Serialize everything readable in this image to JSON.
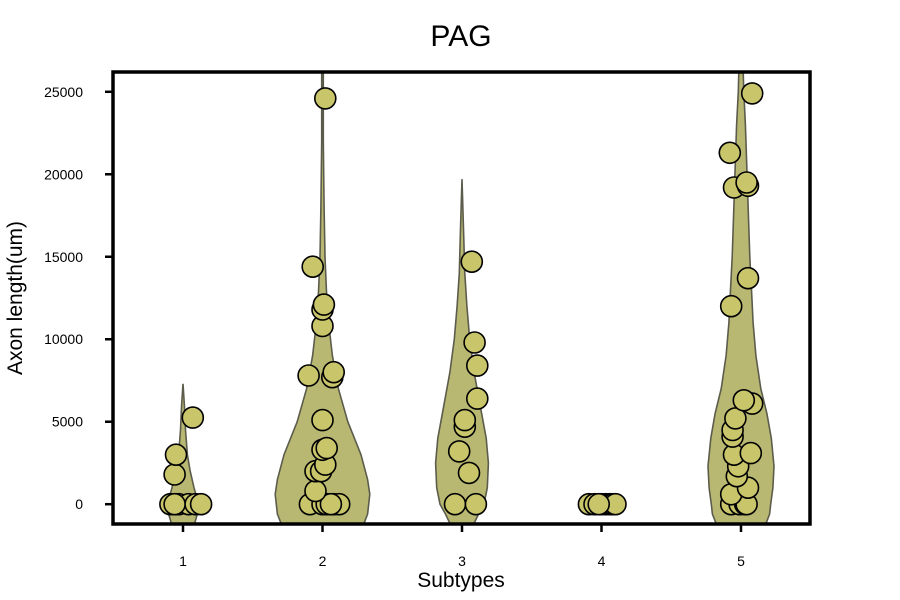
{
  "chart_data": {
    "type": "violin",
    "title": "PAG",
    "xlabel": "Subtypes",
    "ylabel": "Axon length(um)",
    "categories": [
      "1",
      "2",
      "3",
      "4",
      "5"
    ],
    "ylim": [
      -1200,
      26200
    ],
    "yticks": [
      0,
      5000,
      10000,
      15000,
      20000,
      25000
    ],
    "grid": false,
    "colors": {
      "violin_fill": "#b9b873",
      "violin_stroke": "#5c5c4c",
      "point_fill": "#c9c56b",
      "point_stroke": "#000000",
      "frame": "#000000"
    },
    "violins": [
      {
        "category": "1",
        "max": 7300,
        "profile": [
          [
            -1300,
            0.2
          ],
          [
            -600,
            0.26
          ],
          [
            0,
            0.26
          ],
          [
            400,
            0.25
          ],
          [
            1000,
            0.2
          ],
          [
            2000,
            0.13
          ],
          [
            3000,
            0.08
          ],
          [
            4500,
            0.045
          ],
          [
            6000,
            0.025
          ],
          [
            7300,
            0.0
          ]
        ]
      },
      {
        "category": "2",
        "max": 30000,
        "profile": [
          [
            -1200,
            0.75
          ],
          [
            -600,
            0.82
          ],
          [
            0,
            0.84
          ],
          [
            600,
            0.86
          ],
          [
            1500,
            0.82
          ],
          [
            3000,
            0.7
          ],
          [
            5000,
            0.46
          ],
          [
            7000,
            0.29
          ],
          [
            9000,
            0.18
          ],
          [
            11000,
            0.11
          ],
          [
            13000,
            0.07
          ],
          [
            15000,
            0.045
          ],
          [
            18000,
            0.03
          ],
          [
            22000,
            0.015
          ],
          [
            26200,
            0.015
          ]
        ]
      },
      {
        "category": "3",
        "max": 19700,
        "profile": [
          [
            -1300,
            0.2
          ],
          [
            -600,
            0.3
          ],
          [
            0,
            0.4
          ],
          [
            1000,
            0.46
          ],
          [
            2500,
            0.48
          ],
          [
            4000,
            0.44
          ],
          [
            6000,
            0.33
          ],
          [
            8000,
            0.22
          ],
          [
            10000,
            0.14
          ],
          [
            12000,
            0.09
          ],
          [
            14000,
            0.05
          ],
          [
            16500,
            0.03
          ],
          [
            19700,
            0.0
          ]
        ]
      },
      {
        "category": "5",
        "max": 30000,
        "profile": [
          [
            -1200,
            0.45
          ],
          [
            -600,
            0.52
          ],
          [
            0,
            0.54
          ],
          [
            1000,
            0.58
          ],
          [
            2300,
            0.6
          ],
          [
            4000,
            0.55
          ],
          [
            5500,
            0.47
          ],
          [
            7000,
            0.36
          ],
          [
            9000,
            0.27
          ],
          [
            11000,
            0.22
          ],
          [
            13000,
            0.19
          ],
          [
            15000,
            0.16
          ],
          [
            17000,
            0.14
          ],
          [
            19000,
            0.12
          ],
          [
            21000,
            0.1
          ],
          [
            23000,
            0.08
          ],
          [
            25000,
            0.05
          ],
          [
            26200,
            0.04
          ]
        ]
      }
    ],
    "points": [
      {
        "category": "1",
        "values": [
          0,
          0,
          0,
          0,
          0,
          0,
          0,
          1800,
          3000,
          5250
        ],
        "offsets": [
          -0.09,
          -0.05,
          -0.03,
          0.04,
          0.09,
          0.13,
          -0.06,
          -0.06,
          -0.05,
          0.07
        ]
      },
      {
        "category": "2",
        "values": [
          0,
          0,
          0,
          0,
          0,
          0,
          800,
          2000,
          2000,
          2400,
          3300,
          3400,
          5100,
          7800,
          7700,
          8000,
          10800,
          11800,
          12100,
          14400,
          24600
        ],
        "offsets": [
          -0.09,
          0.0,
          0.03,
          0.08,
          0.12,
          0.06,
          -0.05,
          -0.05,
          -0.01,
          0.02,
          0.0,
          0.03,
          0.0,
          -0.1,
          0.07,
          0.08,
          0.0,
          0.0,
          0.01,
          -0.07,
          0.02
        ]
      },
      {
        "category": "3",
        "values": [
          0,
          0,
          1900,
          3200,
          4700,
          5100,
          6400,
          8400,
          9800,
          14700
        ],
        "offsets": [
          -0.05,
          0.1,
          0.05,
          -0.02,
          0.02,
          0.02,
          0.11,
          0.11,
          0.09,
          0.07
        ]
      },
      {
        "category": "4",
        "values": [
          0,
          0,
          0,
          0,
          0,
          0,
          0,
          0
        ],
        "offsets": [
          -0.09,
          -0.05,
          0.0,
          0.03,
          0.06,
          0.08,
          0.1,
          -0.02
        ]
      },
      {
        "category": "5",
        "values": [
          0,
          0,
          0,
          0,
          600,
          1000,
          1700,
          2300,
          3000,
          3100,
          4100,
          4500,
          5200,
          6100,
          6300,
          12000,
          13700,
          19200,
          19300,
          19500,
          21300,
          24900
        ],
        "offsets": [
          -0.07,
          -0.01,
          0.03,
          0.04,
          -0.07,
          0.05,
          -0.03,
          -0.02,
          -0.05,
          0.07,
          -0.06,
          -0.06,
          -0.04,
          0.08,
          0.02,
          -0.07,
          0.05,
          -0.05,
          0.05,
          0.04,
          -0.08,
          0.08
        ]
      }
    ]
  }
}
